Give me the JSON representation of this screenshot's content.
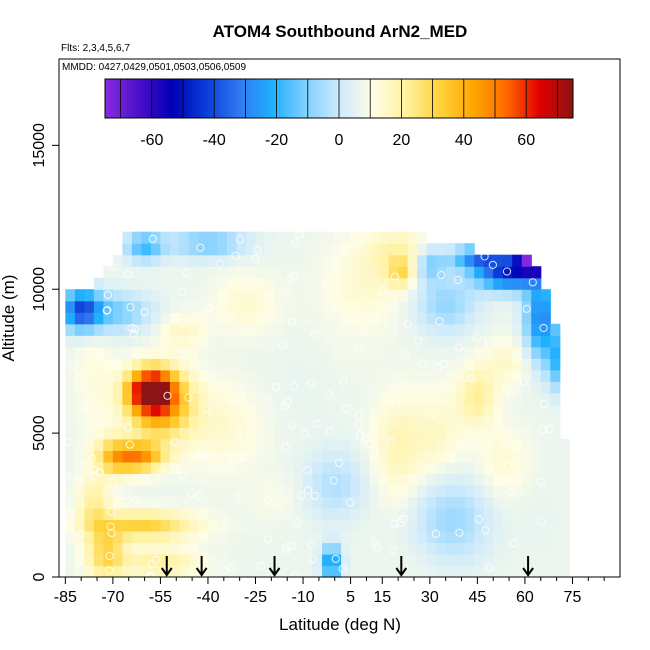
{
  "chart_data": {
    "type": "heatmap",
    "title": "ATOM4 Southbound ArN2_MED",
    "subtitle_flights": "Flts: 2,3,4,5,6,7",
    "subtitle_dates": "MMDD: 0427,0429,0501,0503,0506,0509",
    "xlabel": "Latitude (deg N)",
    "ylabel": "Altitude (m)",
    "xlim": [
      -87,
      90
    ],
    "ylim": [
      0,
      18000
    ],
    "x_major_ticks": [
      -85,
      -70,
      -55,
      -40,
      -25,
      -10,
      5,
      15,
      30,
      45,
      60,
      75
    ],
    "x_minor_ticks": [
      -80,
      -75,
      -65,
      -60,
      -50,
      -45,
      -35,
      -30,
      -20,
      -15,
      -5,
      0,
      10,
      20,
      25,
      35,
      40,
      50,
      55,
      65,
      70,
      80,
      85
    ],
    "y_ticks": [
      0,
      5000,
      10000,
      15000
    ],
    "colorbar": {
      "range": [
        -75,
        75
      ],
      "ticks": [
        -60,
        -40,
        -20,
        0,
        20,
        40,
        60
      ],
      "colors": [
        "#8a2be2",
        "#4b10c8",
        "#0000b4",
        "#0a3cd8",
        "#2f78f0",
        "#1fb0ff",
        "#7fd0ff",
        "#cdeafc",
        "#fefde6",
        "#fff2a0",
        "#ffd23c",
        "#ffa800",
        "#ff6a00",
        "#e00000",
        "#8b1414"
      ]
    },
    "arrows_latitude": [
      -53,
      -42,
      -19,
      21,
      61
    ],
    "grid_lat_step": 3,
    "grid_alt_step": 400,
    "envelope": [
      [
        -85,
        0,
        9600
      ],
      [
        -80,
        0,
        9800
      ],
      [
        -75,
        0,
        10100
      ],
      [
        -72,
        0,
        10500
      ],
      [
        -70,
        0,
        10900
      ],
      [
        -64,
        0,
        11900
      ],
      [
        -30,
        0,
        12000
      ],
      [
        -20,
        0,
        12000
      ],
      [
        -10,
        0,
        12000
      ],
      [
        0,
        0,
        12000
      ],
      [
        10,
        0,
        12000
      ],
      [
        20,
        0,
        12000
      ],
      [
        26,
        0,
        11800
      ],
      [
        30,
        0,
        11400
      ],
      [
        45,
        0,
        11200
      ],
      [
        58,
        0,
        11200
      ],
      [
        65,
        0,
        10200
      ],
      [
        70,
        0,
        8500
      ],
      [
        72,
        0,
        6000
      ],
      [
        73,
        0,
        3000
      ]
    ],
    "features": [
      {
        "lat": -58,
        "alt": 6500,
        "value": 65,
        "rlat": 7,
        "ralt": 700
      },
      {
        "lat": -55,
        "alt": 6000,
        "value": 45,
        "rlat": 10,
        "ralt": 1200
      },
      {
        "lat": -62,
        "alt": 4200,
        "value": 45,
        "rlat": 8,
        "ralt": 500
      },
      {
        "lat": -70,
        "alt": 4200,
        "value": 28,
        "rlat": 6,
        "ralt": 700
      },
      {
        "lat": -60,
        "alt": 1800,
        "value": 32,
        "rlat": 16,
        "ralt": 500
      },
      {
        "lat": -72,
        "alt": 800,
        "value": 30,
        "rlat": 6,
        "ralt": 900
      },
      {
        "lat": -55,
        "alt": 500,
        "value": 22,
        "rlat": 12,
        "ralt": 500
      },
      {
        "lat": -70,
        "alt": 9200,
        "value": -12,
        "rlat": 12,
        "ralt": 700
      },
      {
        "lat": -80,
        "alt": 9300,
        "value": -35,
        "rlat": 6,
        "ralt": 700
      },
      {
        "lat": -48,
        "alt": 8600,
        "value": 16,
        "rlat": 7,
        "ralt": 600
      },
      {
        "lat": -28,
        "alt": 9500,
        "value": 14,
        "rlat": 10,
        "ralt": 1000
      },
      {
        "lat": 10,
        "alt": 10200,
        "value": 14,
        "rlat": 14,
        "ralt": 1500
      },
      {
        "lat": 20,
        "alt": 11300,
        "value": 18,
        "rlat": 10,
        "ralt": 800
      },
      {
        "lat": 21,
        "alt": 10600,
        "value": 24,
        "rlat": 4,
        "ralt": 500
      },
      {
        "lat": 20,
        "alt": 4500,
        "value": 18,
        "rlat": 8,
        "ralt": 1800
      },
      {
        "lat": 33,
        "alt": 5000,
        "value": 15,
        "rlat": 8,
        "ralt": 1500
      },
      {
        "lat": 45,
        "alt": 6300,
        "value": 22,
        "rlat": 6,
        "ralt": 1000
      },
      {
        "lat": 55,
        "alt": 7500,
        "value": 15,
        "rlat": 8,
        "ralt": 800
      },
      {
        "lat": 53,
        "alt": 4000,
        "value": 14,
        "rlat": 8,
        "ralt": 1200
      },
      {
        "lat": 37,
        "alt": 2000,
        "value": -7,
        "rlat": 12,
        "ralt": 1500
      },
      {
        "lat": 0,
        "alt": 3200,
        "value": -4,
        "rlat": 10,
        "ralt": 1200
      },
      {
        "lat": -18,
        "alt": 2800,
        "value": 10,
        "rlat": 9,
        "ralt": 800
      },
      {
        "lat": -1,
        "alt": 500,
        "value": -30,
        "rlat": 3,
        "ralt": 600
      },
      {
        "lat": -10,
        "alt": 6500,
        "value": 6,
        "rlat": 12,
        "ralt": 1500
      },
      {
        "lat": -35,
        "alt": 5200,
        "value": 14,
        "rlat": 12,
        "ralt": 1500
      },
      {
        "lat": 5,
        "alt": 7800,
        "value": 8,
        "rlat": 10,
        "ralt": 1200
      },
      {
        "lat": 35,
        "alt": 9500,
        "value": -8,
        "rlat": 10,
        "ralt": 1000
      },
      {
        "lat": 55,
        "alt": 10600,
        "value": -45,
        "rlat": 10,
        "ralt": 600
      },
      {
        "lat": 64,
        "alt": 11100,
        "value": -70,
        "rlat": 6,
        "ralt": 500
      },
      {
        "lat": 65,
        "alt": 9000,
        "value": -30,
        "rlat": 5,
        "ralt": 1500
      },
      {
        "lat": 70,
        "alt": 7500,
        "value": -15,
        "rlat": 3,
        "ralt": 1000
      },
      {
        "lat": 45,
        "alt": 11100,
        "value": -25,
        "rlat": 8,
        "ralt": 400
      },
      {
        "lat": 30,
        "alt": 10900,
        "value": -12,
        "rlat": 5,
        "ralt": 600
      },
      {
        "lat": -40,
        "alt": 11600,
        "value": -12,
        "rlat": 12,
        "ralt": 500
      },
      {
        "lat": -60,
        "alt": 11500,
        "value": -18,
        "rlat": 6,
        "ralt": 500
      },
      {
        "lat": -76,
        "alt": 7000,
        "value": 12,
        "rlat": 6,
        "ralt": 2000
      },
      {
        "lat": -76,
        "alt": 2500,
        "value": 22,
        "rlat": 5,
        "ralt": 1000
      },
      {
        "lat": 65,
        "alt": 2000,
        "value": 6,
        "rlat": 6,
        "ralt": 1500
      },
      {
        "lat": 28,
        "alt": 500,
        "value": 8,
        "rlat": 10,
        "ralt": 600
      }
    ]
  }
}
